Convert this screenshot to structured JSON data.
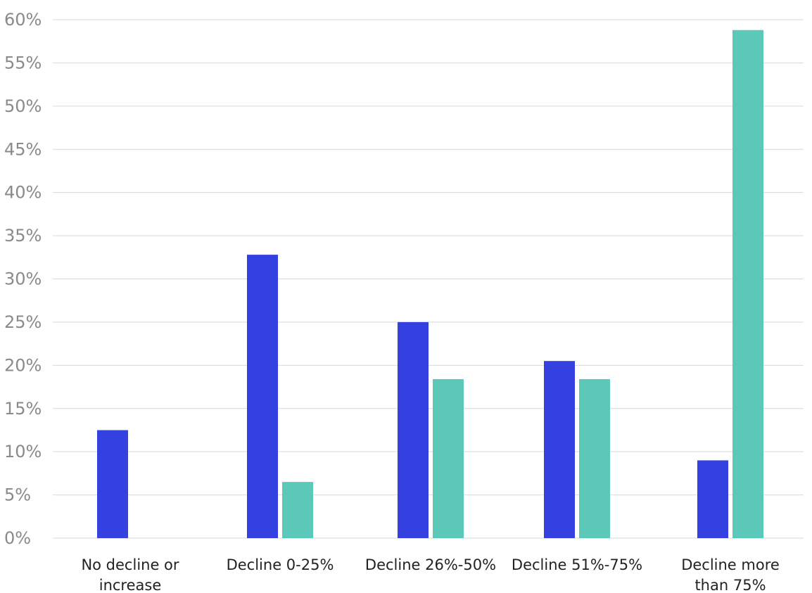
{
  "chart_data": {
    "type": "bar",
    "categories": [
      [
        "No decline or",
        "increase"
      ],
      [
        "Decline 0-25%"
      ],
      [
        "Decline 26%-50%"
      ],
      [
        "Decline 51%-75%"
      ],
      [
        "Decline more",
        "than 75%"
      ]
    ],
    "series": [
      {
        "values": [
          12.5,
          32.8,
          25.0,
          20.5,
          9.0
        ],
        "color": "#3540e0"
      },
      {
        "values": [
          null,
          6.5,
          18.4,
          18.4,
          58.8
        ],
        "color": "#5bc8ba"
      }
    ],
    "ylim": [
      0,
      60
    ],
    "yticks": [
      0,
      5,
      10,
      15,
      20,
      25,
      30,
      35,
      40,
      45,
      50,
      55,
      60
    ],
    "ytick_format": "%",
    "grid": true,
    "legend": "none"
  }
}
